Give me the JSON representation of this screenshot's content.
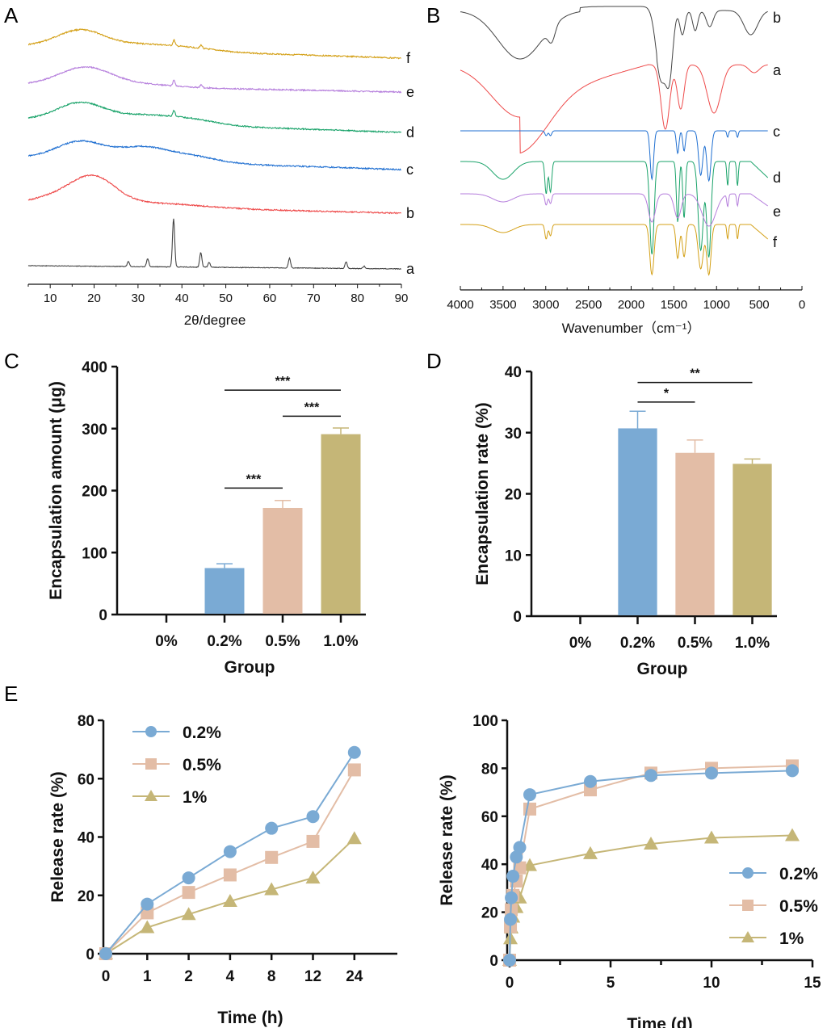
{
  "figure": {
    "panels": [
      "A",
      "B",
      "C",
      "D",
      "E"
    ]
  },
  "chart_data": [
    {
      "id": "A",
      "type": "line",
      "title": "",
      "xlabel": "2θ/degree",
      "ylabel": "",
      "xlim": [
        5,
        90
      ],
      "xticks": [
        10,
        20,
        30,
        40,
        50,
        60,
        70,
        80,
        90
      ],
      "grid": false,
      "description": "XRD patterns, stacked traces",
      "series": [
        {
          "name": "f",
          "color": "#d4a017",
          "features": {
            "broad_peaks": [
              17,
              32
            ],
            "sharp_peaks": [
              38.2,
              44.4
            ],
            "tail": 90
          }
        },
        {
          "name": "e",
          "color": "#b57edc",
          "features": {
            "broad_peaks": [
              18
            ],
            "sharp_peaks": [
              38.2,
              44.4
            ]
          }
        },
        {
          "name": "d",
          "color": "#1aa36a",
          "features": {
            "broad_peaks": [
              17,
              31,
              40
            ],
            "sharp_peaks": [
              38.2
            ]
          }
        },
        {
          "name": "c",
          "color": "#1f6fd1",
          "features": {
            "broad_peaks": [
              17,
              31,
              41
            ],
            "sharp_peaks": []
          }
        },
        {
          "name": "b",
          "color": "#ee4b4b",
          "features": {
            "broad_peaks": [
              20
            ],
            "sharp_peaks": []
          }
        },
        {
          "name": "a",
          "color": "#444444",
          "features": {
            "broad_peaks": [],
            "sharp_peaks": [
              27.8,
              32.2,
              38.1,
              44.3,
              46.2,
              64.5,
              77.4,
              81.5
            ]
          }
        }
      ]
    },
    {
      "id": "B",
      "type": "line",
      "title": "",
      "xlabel": "Wavenumber（cm⁻¹）",
      "ylabel": "",
      "xlim": [
        4000,
        0
      ],
      "xticks": [
        4000,
        3500,
        3000,
        2500,
        2000,
        1500,
        1000,
        500,
        0
      ],
      "grid": false,
      "description": "FTIR spectra, stacked traces",
      "series": [
        {
          "name": "b",
          "color": "#444444",
          "bands": [
            3300,
            2930,
            1650,
            1550,
            1400,
            1080,
            600
          ]
        },
        {
          "name": "a",
          "color": "#ee4b4b",
          "bands": [
            3400,
            1600,
            1420,
            1030,
            560
          ]
        },
        {
          "name": "c",
          "color": "#1f6fd1",
          "bands": [
            2995,
            2945,
            1757,
            1455,
            1380,
            1185,
            1090,
            870,
            755
          ]
        },
        {
          "name": "d",
          "color": "#1aa36a",
          "bands": [
            3500,
            2995,
            2945,
            1757,
            1455,
            1380,
            1185,
            1090,
            870,
            755
          ]
        },
        {
          "name": "e",
          "color": "#b57edc",
          "bands": [
            3500,
            2995,
            2945,
            1757,
            1455,
            1090,
            755
          ]
        },
        {
          "name": "f",
          "color": "#d4a017",
          "bands": [
            3500,
            2995,
            2945,
            1757,
            1455,
            1185,
            1090,
            755
          ]
        }
      ]
    },
    {
      "id": "C",
      "type": "bar",
      "title": "",
      "xlabel": "Group",
      "ylabel": "Encapsulation amount (μg)",
      "ylim": [
        0,
        400
      ],
      "yticks": [
        0,
        100,
        200,
        300,
        400
      ],
      "categories": [
        "0%",
        "0.2%",
        "0.5%",
        "1.0%"
      ],
      "values": [
        0,
        75,
        172,
        291
      ],
      "errors": [
        0,
        7,
        12,
        10
      ],
      "colors": [
        "#7aaad4",
        "#7aaad4",
        "#e3bda6",
        "#c5b677"
      ],
      "significance": [
        {
          "from": "0.2%",
          "to": "1.0%",
          "label": "***",
          "y": 362
        },
        {
          "from": "0.5%",
          "to": "1.0%",
          "label": "***",
          "y": 320
        },
        {
          "from": "0.2%",
          "to": "0.5%",
          "label": "***",
          "y": 204
        }
      ]
    },
    {
      "id": "D",
      "type": "bar",
      "title": "",
      "xlabel": "Group",
      "ylabel": "Encapsulation rate (%)",
      "ylim": [
        0,
        40
      ],
      "yticks": [
        0,
        10,
        20,
        30,
        40
      ],
      "categories": [
        "0%",
        "0.2%",
        "0.5%",
        "1.0%"
      ],
      "values": [
        0,
        30.7,
        26.7,
        24.9
      ],
      "errors": [
        0,
        2.8,
        2.1,
        0.8
      ],
      "colors": [
        "#7aaad4",
        "#7aaad4",
        "#e3bda6",
        "#c5b677"
      ],
      "significance": [
        {
          "from": "0.2%",
          "to": "1.0%",
          "label": "**",
          "y": 38.2
        },
        {
          "from": "0.2%",
          "to": "0.5%",
          "label": "*",
          "y": 35
        }
      ]
    },
    {
      "id": "E-left",
      "type": "line",
      "title": "",
      "xlabel": "Time (h)",
      "ylabel": "Release rate (%)",
      "ylim": [
        0,
        80
      ],
      "yticks": [
        0,
        20,
        40,
        60,
        80
      ],
      "categories": [
        "0",
        "1",
        "2",
        "4",
        "8",
        "12",
        "24"
      ],
      "legend": "top-left",
      "series": [
        {
          "name": "0.2%",
          "marker": "circle",
          "color": "#7aaad4",
          "values": [
            0,
            17,
            26,
            35,
            43,
            47,
            69
          ]
        },
        {
          "name": "0.5%",
          "marker": "square",
          "color": "#e3bda6",
          "values": [
            0,
            14,
            21,
            27,
            33,
            38.5,
            63
          ]
        },
        {
          "name": "1%",
          "marker": "triangle",
          "color": "#c5b677",
          "values": [
            0,
            9,
            13.5,
            18,
            22,
            26,
            39.5
          ]
        }
      ]
    },
    {
      "id": "E-right",
      "type": "line",
      "title": "",
      "xlabel": "Time (d)",
      "ylabel": "Release rate (%)",
      "xlim": [
        0,
        15
      ],
      "xticks": [
        0,
        5,
        10,
        15
      ],
      "ylim": [
        0,
        100
      ],
      "yticks": [
        0,
        20,
        40,
        60,
        80,
        100
      ],
      "legend": "bottom-right",
      "series": [
        {
          "name": "0.2%",
          "marker": "circle",
          "color": "#7aaad4",
          "x": [
            0,
            0.042,
            0.083,
            0.167,
            0.333,
            0.5,
            1,
            4,
            7,
            10,
            14
          ],
          "values": [
            0,
            17,
            26,
            35,
            43,
            47,
            69,
            74.5,
            77,
            78,
            79
          ]
        },
        {
          "name": "0.5%",
          "marker": "square",
          "color": "#e3bda6",
          "x": [
            0,
            0.042,
            0.083,
            0.167,
            0.333,
            0.5,
            1,
            4,
            7,
            10,
            14
          ],
          "values": [
            0,
            14,
            21,
            27,
            33,
            38.5,
            63,
            71,
            78,
            80,
            81
          ]
        },
        {
          "name": "1%",
          "marker": "triangle",
          "color": "#c5b677",
          "x": [
            0,
            0.042,
            0.083,
            0.167,
            0.333,
            0.5,
            1,
            4,
            7,
            10,
            14
          ],
          "values": [
            0,
            9,
            13.5,
            18,
            22,
            26,
            39.5,
            44.5,
            48.5,
            51,
            52
          ]
        }
      ]
    }
  ]
}
